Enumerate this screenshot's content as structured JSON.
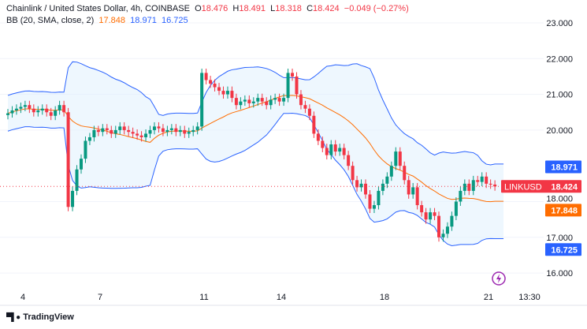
{
  "header": {
    "symbol_title": "Chainlink / United States Dollar, 4h, COINBASE",
    "o_label": "O",
    "o_value": "18.476",
    "h_label": "H",
    "h_value": "18.491",
    "l_label": "L",
    "l_value": "18.318",
    "c_label": "C",
    "c_value": "18.424",
    "change": "−0.049 (−0.27%)"
  },
  "indicator": {
    "label": "BB (20, SMA, close, 2)",
    "basis": "17.848",
    "upper": "18.971",
    "lower": "16.725"
  },
  "colors": {
    "up": "#089981",
    "down": "#f23645",
    "basis": "#ff6d00",
    "bands": "#2962ff",
    "fill": "#e3f2fd",
    "last_price": "#f23645"
  },
  "logo": {
    "text": "TradingView"
  },
  "icons": {
    "alert": "lightning-icon"
  },
  "chart_data": {
    "type": "candlestick",
    "interval": "4h",
    "ylim": [
      15.6,
      23.6
    ],
    "y_ticks": [
      "23.000",
      "22.000",
      "21.000",
      "20.000",
      "18.000",
      "17.000",
      "16.000"
    ],
    "x_ticks": [
      "4",
      "7",
      "11",
      "14",
      "18",
      "21",
      "13:30"
    ],
    "grid": true,
    "closes": [
      20.47,
      20.55,
      20.6,
      20.65,
      20.7,
      20.6,
      20.5,
      20.55,
      20.6,
      20.5,
      20.4,
      20.55,
      20.7,
      20.5,
      17.85,
      18.3,
      18.9,
      19.2,
      19.7,
      19.8,
      20.0,
      19.95,
      20.05,
      20.0,
      19.9,
      20.0,
      20.1,
      20.0,
      19.95,
      19.9,
      19.85,
      19.8,
      19.9,
      20.0,
      20.1,
      20.05,
      19.95,
      20.0,
      20.05,
      19.95,
      20.0,
      19.9,
      19.95,
      20.0,
      20.1,
      21.6,
      21.4,
      21.3,
      21.2,
      21.1,
      21.0,
      21.1,
      20.9,
      20.7,
      20.8,
      20.85,
      20.75,
      20.8,
      20.9,
      20.8,
      20.7,
      20.85,
      20.9,
      20.8,
      20.9,
      21.6,
      21.5,
      21.0,
      20.7,
      20.6,
      20.4,
      19.9,
      19.7,
      19.5,
      19.3,
      19.6,
      19.4,
      19.5,
      19.3,
      19.0,
      18.6,
      18.4,
      18.5,
      18.2,
      17.8,
      17.9,
      18.3,
      18.5,
      18.7,
      19.0,
      19.4,
      19.0,
      18.6,
      18.2,
      18.4,
      17.9,
      17.7,
      17.5,
      17.7,
      17.6,
      17.0,
      17.1,
      17.3,
      17.6,
      18.0,
      18.3,
      18.5,
      18.3,
      18.6,
      18.55,
      18.7,
      18.5,
      18.476,
      18.424
    ],
    "last_open": 18.476,
    "bollinger": {
      "period": 20,
      "stddev": 2
    },
    "price_labels": {
      "upper": "18.971",
      "symbol": "LINKUSD",
      "last": "18.424",
      "basis": "17.848",
      "lower": "16.725"
    }
  }
}
